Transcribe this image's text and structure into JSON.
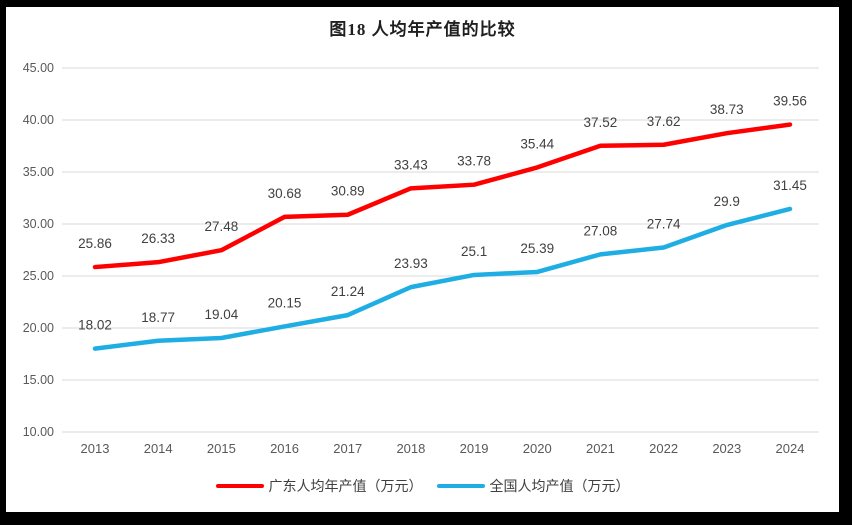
{
  "chart_data": {
    "type": "line",
    "title": "图18 人均年产值的比较",
    "categories": [
      "2013",
      "2014",
      "2015",
      "2016",
      "2017",
      "2018",
      "2019",
      "2020",
      "2021",
      "2022",
      "2023",
      "2024"
    ],
    "series": [
      {
        "name": "广东人均年产值（万元）",
        "color": "#ff0000",
        "values": [
          25.86,
          26.33,
          27.48,
          30.68,
          30.89,
          33.43,
          33.78,
          35.44,
          37.52,
          37.62,
          38.73,
          39.56
        ],
        "value_labels": [
          "25.86",
          "26.33",
          "27.48",
          "30.68",
          "30.89",
          "33.43",
          "33.78",
          "35.44",
          "37.52",
          "37.62",
          "38.73",
          "39.56"
        ]
      },
      {
        "name": "全国人均产值（万元）",
        "color": "#1fadе3",
        "values": [
          18.02,
          18.77,
          19.04,
          20.15,
          21.24,
          23.93,
          25.1,
          25.39,
          27.08,
          27.74,
          29.9,
          31.45
        ],
        "value_labels": [
          "18.02",
          "18.77",
          "19.04",
          "20.15",
          "21.24",
          "23.93",
          "25.1",
          "25.39",
          "27.08",
          "27.74",
          "29.9",
          "31.45"
        ]
      }
    ],
    "xlabel": "",
    "ylabel": "",
    "ylim": [
      10,
      45
    ],
    "ytick_step": 5,
    "ytick_labels": [
      "10.00",
      "15.00",
      "20.00",
      "25.00",
      "30.00",
      "35.00",
      "40.00",
      "45.00"
    ],
    "grid": true,
    "legend_position": "bottom",
    "colors": {
      "series_guangdong": "#ff0000",
      "series_national": "#1faee3",
      "gridline": "#d9d9d9",
      "axis_text": "#595959",
      "data_label_text": "#404040",
      "frame_border": "#000000",
      "background": "#ffffff"
    }
  }
}
